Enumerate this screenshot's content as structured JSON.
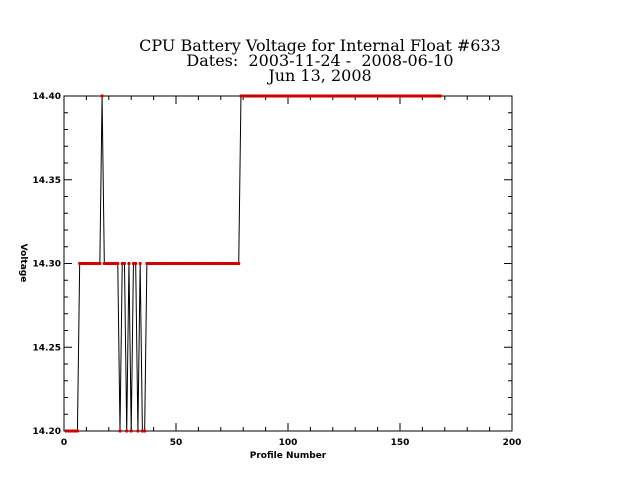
{
  "chart_data": {
    "type": "line",
    "title": "CPU Battery Voltage for Internal Float #633",
    "subtitle": "Dates:  2003-11-24 -  2008-06-10",
    "date": "Jun 13, 2008",
    "xlabel": "Profile Number",
    "ylabel": "Voltage",
    "xlim": [
      0,
      200
    ],
    "ylim": [
      14.2,
      14.4
    ],
    "xticks": [
      0,
      50,
      100,
      150,
      200
    ],
    "yticks": [
      14.2,
      14.25,
      14.3,
      14.35,
      14.4
    ],
    "xtick_labels": [
      "0",
      "50",
      "100",
      "150",
      "200"
    ],
    "ytick_labels": [
      "14.20",
      "14.25",
      "14.30",
      "14.35",
      "14.40"
    ],
    "grid": false,
    "line_color": "#000000",
    "marker_color": "#cc0000",
    "series": [
      {
        "x": [
          1,
          2,
          3,
          4,
          5,
          6,
          7,
          8,
          9,
          10,
          11,
          12,
          13,
          14,
          15,
          16,
          17,
          18,
          19,
          20,
          21,
          22,
          23,
          24,
          25,
          26,
          27,
          28,
          29,
          30,
          31,
          32,
          33,
          34,
          35,
          36,
          37,
          38,
          39,
          40,
          41,
          42,
          43,
          44,
          45,
          46,
          47,
          48,
          49,
          50,
          51,
          52,
          53,
          54,
          55,
          56,
          57,
          58,
          59,
          60,
          61,
          62,
          63,
          64,
          65,
          66,
          67,
          68,
          69,
          70,
          71,
          72,
          73,
          74,
          75,
          76,
          77,
          78,
          79,
          80,
          81,
          82,
          83,
          84,
          85,
          86,
          87,
          88,
          89,
          90,
          91,
          92,
          93,
          94,
          95,
          96,
          97,
          98,
          99,
          100,
          101,
          102,
          103,
          104,
          105,
          106,
          107,
          108,
          109,
          110,
          111,
          112,
          113,
          114,
          115,
          116,
          117,
          118,
          119,
          120,
          121,
          122,
          123,
          124,
          125,
          126,
          127,
          128,
          129,
          130,
          131,
          132,
          133,
          134,
          135,
          136,
          137,
          138,
          139,
          140,
          141,
          142,
          143,
          144,
          145,
          146,
          147,
          148,
          149,
          150,
          151,
          152,
          153,
          154,
          155,
          156,
          157,
          158,
          159,
          160,
          161,
          162,
          163,
          164,
          165,
          166,
          167,
          168
        ],
        "y": [
          14.2,
          14.2,
          14.2,
          14.2,
          14.2,
          14.2,
          14.3,
          14.3,
          14.3,
          14.3,
          14.3,
          14.3,
          14.3,
          14.3,
          14.3,
          14.3,
          14.4,
          14.3,
          14.3,
          14.3,
          14.3,
          14.3,
          14.3,
          14.3,
          14.2,
          14.3,
          14.3,
          14.2,
          14.3,
          14.2,
          14.3,
          14.3,
          14.2,
          14.3,
          14.2,
          14.2,
          14.3,
          14.3,
          14.3,
          14.3,
          14.3,
          14.3,
          14.3,
          14.3,
          14.3,
          14.3,
          14.3,
          14.3,
          14.3,
          14.3,
          14.3,
          14.3,
          14.3,
          14.3,
          14.3,
          14.3,
          14.3,
          14.3,
          14.3,
          14.3,
          14.3,
          14.3,
          14.3,
          14.3,
          14.3,
          14.3,
          14.3,
          14.3,
          14.3,
          14.3,
          14.3,
          14.3,
          14.3,
          14.3,
          14.3,
          14.3,
          14.3,
          14.3,
          14.4,
          14.4,
          14.4,
          14.4,
          14.4,
          14.4,
          14.4,
          14.4,
          14.4,
          14.4,
          14.4,
          14.4,
          14.4,
          14.4,
          14.4,
          14.4,
          14.4,
          14.4,
          14.4,
          14.4,
          14.4,
          14.4,
          14.4,
          14.4,
          14.4,
          14.4,
          14.4,
          14.4,
          14.4,
          14.4,
          14.4,
          14.4,
          14.4,
          14.4,
          14.4,
          14.4,
          14.4,
          14.4,
          14.4,
          14.4,
          14.4,
          14.4,
          14.4,
          14.4,
          14.4,
          14.4,
          14.4,
          14.4,
          14.4,
          14.4,
          14.4,
          14.4,
          14.4,
          14.4,
          14.4,
          14.4,
          14.4,
          14.4,
          14.4,
          14.4,
          14.4,
          14.4,
          14.4,
          14.4,
          14.4,
          14.4,
          14.4,
          14.4,
          14.4,
          14.4,
          14.4,
          14.4,
          14.4,
          14.4,
          14.4,
          14.4,
          14.4,
          14.4,
          14.4,
          14.4,
          14.4,
          14.4,
          14.4,
          14.4,
          14.4,
          14.4,
          14.4,
          14.4,
          14.4,
          14.4
        ]
      }
    ]
  }
}
